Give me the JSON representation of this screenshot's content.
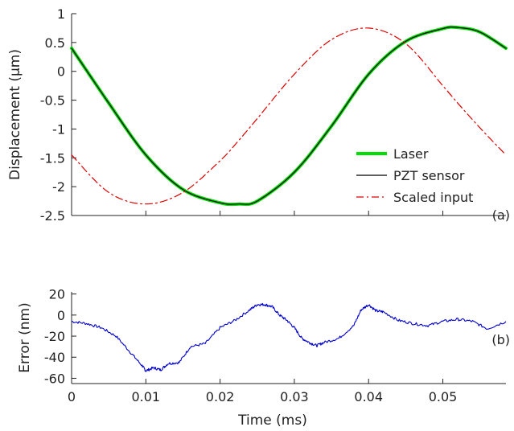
{
  "chart_data": [
    {
      "type": "line",
      "panel_tag": "(a)",
      "ylabel": "Displacement (µm)",
      "xlabel": "",
      "xlim": [
        0,
        0.0585
      ],
      "ylim": [
        -2.5,
        1
      ],
      "yticks": [
        1,
        0.5,
        0,
        -0.5,
        -1,
        -1.5,
        -2,
        -2.5
      ],
      "ytick_labels": [
        "1",
        "0.5",
        "0",
        "-0.5",
        "-1",
        "-1.5",
        "-2",
        "-2.5"
      ],
      "xticks": [
        0,
        0.01,
        0.02,
        0.03,
        0.04,
        0.05
      ],
      "legend_position": "lower-right",
      "x": [
        0,
        0.005,
        0.01,
        0.015,
        0.02,
        0.0225,
        0.025,
        0.03,
        0.035,
        0.04,
        0.045,
        0.05,
        0.052,
        0.055,
        0.0585
      ],
      "series": [
        {
          "name": "Laser",
          "color": "#00dd00",
          "style": "solid",
          "width": 4,
          "values": [
            0.4,
            -0.55,
            -1.45,
            -2.05,
            -2.28,
            -2.3,
            -2.25,
            -1.75,
            -0.95,
            -0.05,
            0.52,
            0.74,
            0.76,
            0.68,
            0.4
          ]
        },
        {
          "name": "PZT sensor",
          "color": "#000000",
          "style": "solid",
          "width": 1.2,
          "values": [
            0.4,
            -0.55,
            -1.45,
            -2.05,
            -2.28,
            -2.3,
            -2.25,
            -1.75,
            -0.95,
            -0.05,
            0.52,
            0.74,
            0.76,
            0.68,
            0.4
          ]
        },
        {
          "name": "Scaled input",
          "color": "#dd0000",
          "style": "dashdot",
          "width": 1.2,
          "values": [
            -1.45,
            -2.1,
            -2.3,
            -2.1,
            -1.55,
            -1.2,
            -0.82,
            -0.05,
            0.55,
            0.75,
            0.48,
            -0.25,
            -0.55,
            -0.98,
            -1.45
          ]
        }
      ]
    },
    {
      "type": "line",
      "panel_tag": "(b)",
      "ylabel": "Error (nm)",
      "xlabel": "Time (ms)",
      "xlim": [
        0,
        0.0585
      ],
      "ylim": [
        -65,
        22
      ],
      "yticks": [
        20,
        0,
        -20,
        -40,
        -60
      ],
      "ytick_labels": [
        "20",
        "0",
        "-20",
        "-40",
        "-60"
      ],
      "xticks": [
        0,
        0.01,
        0.02,
        0.03,
        0.04,
        0.05
      ],
      "xtick_labels": [
        "0",
        "0.01",
        "0.02",
        "0.03",
        "0.04",
        "0.05"
      ],
      "x": [
        0,
        0.002,
        0.004,
        0.006,
        0.008,
        0.0095,
        0.01,
        0.011,
        0.012,
        0.013,
        0.0145,
        0.016,
        0.018,
        0.02,
        0.022,
        0.024,
        0.025,
        0.026,
        0.027,
        0.028,
        0.029,
        0.03,
        0.031,
        0.032,
        0.033,
        0.034,
        0.036,
        0.038,
        0.039,
        0.04,
        0.041,
        0.042,
        0.044,
        0.046,
        0.048,
        0.05,
        0.052,
        0.054,
        0.056,
        0.0585
      ],
      "series": [
        {
          "name": "",
          "color": "#0000cc",
          "values": [
            -6,
            -8,
            -12,
            -20,
            -36,
            -48,
            -53,
            -50,
            -52,
            -46,
            -45,
            -30,
            -27,
            -12,
            -5,
            5,
            10,
            10,
            8,
            0,
            -5,
            -12,
            -22,
            -26,
            -29,
            -26,
            -22,
            -10,
            5,
            10,
            4,
            3,
            -5,
            -8,
            -10,
            -6,
            -4,
            -6,
            -13,
            -6
          ]
        }
      ]
    }
  ]
}
